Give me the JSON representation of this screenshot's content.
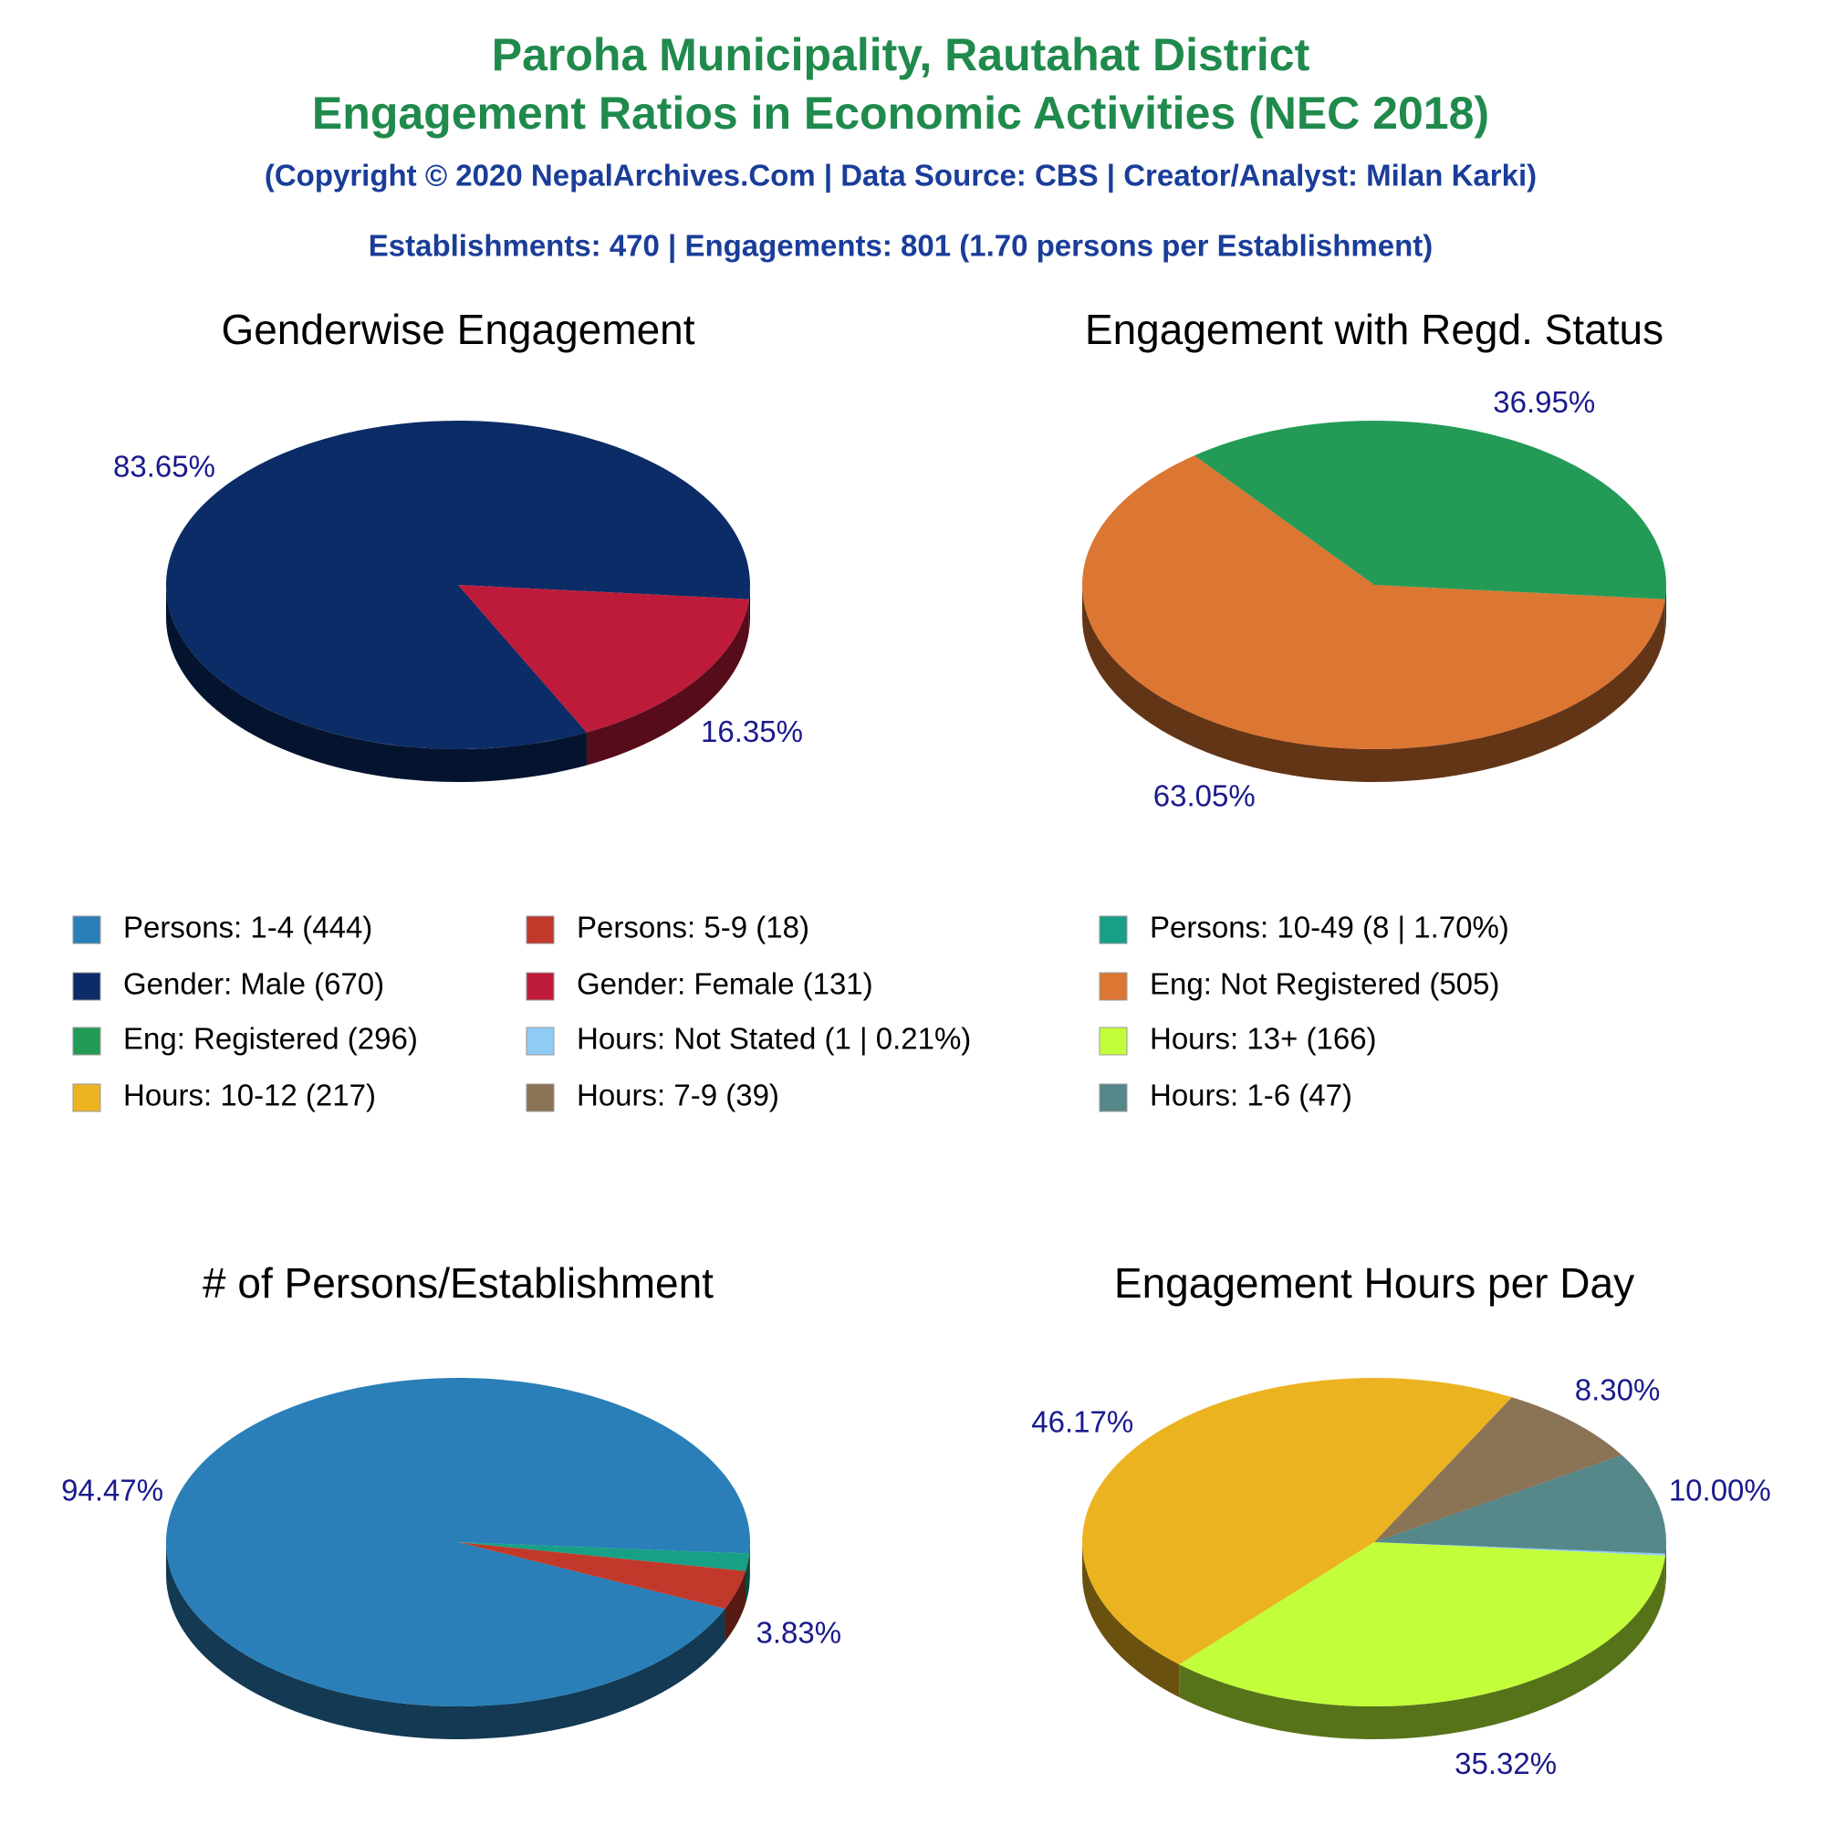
{
  "header": {
    "title_lines": [
      "Paroha Municipality, Rautahat District",
      "Engagement Ratios in Economic Activities (NEC 2018)"
    ],
    "copyright": "(Copyright © 2020 NepalArchives.Com | Data Source: CBS | Creator/Analyst: Milan Karki)",
    "summary": "Establishments: 470 | Engagements: 801 (1.70 persons per Establishment)"
  },
  "chart_data": [
    {
      "type": "pie",
      "title": "# of Persons/Establishment",
      "categories": [
        "Persons: 1-4 (444)",
        "Persons: 5-9 (18)",
        "Persons: 10-49 (8 | 1.70%)"
      ],
      "values": [
        94.47,
        3.83,
        1.7
      ],
      "value_labels": [
        "94.47%",
        "3.83%",
        null
      ],
      "colors": [
        "#2a7fb8",
        "#c0392b",
        "#17a085"
      ]
    },
    {
      "type": "pie",
      "title": "Genderwise Engagement",
      "categories": [
        "Gender: Male (670)",
        "Gender: Female (131)"
      ],
      "values": [
        83.65,
        16.35
      ],
      "value_labels": [
        "83.65%",
        "16.35%"
      ],
      "colors": [
        "#0b2c66",
        "#be1a3a"
      ]
    },
    {
      "type": "pie",
      "title": "Engagement with Regd. Status",
      "categories": [
        "Eng: Not Registered (505)",
        "Eng: Registered (296)"
      ],
      "values": [
        63.05,
        36.95
      ],
      "value_labels": [
        "63.05%",
        "36.95%"
      ],
      "colors": [
        "#dc7633",
        "#239b56"
      ]
    },
    {
      "type": "pie",
      "title": "Engagement Hours per Day",
      "categories": [
        "Hours: Not Stated (1 | 0.21%)",
        "Hours: 13+ (166)",
        "Hours: 10-12 (217)",
        "Hours: 7-9 (39)",
        "Hours: 1-6 (47)"
      ],
      "values": [
        0.21,
        35.32,
        46.17,
        8.3,
        10.0
      ],
      "value_labels": [
        null,
        "35.32%",
        "46.17%",
        "8.30%",
        "10.00%"
      ],
      "colors": [
        "#8ecbf5",
        "#c2ff3a",
        "#ecb321",
        "#8b7355",
        "#568789"
      ]
    }
  ]
}
